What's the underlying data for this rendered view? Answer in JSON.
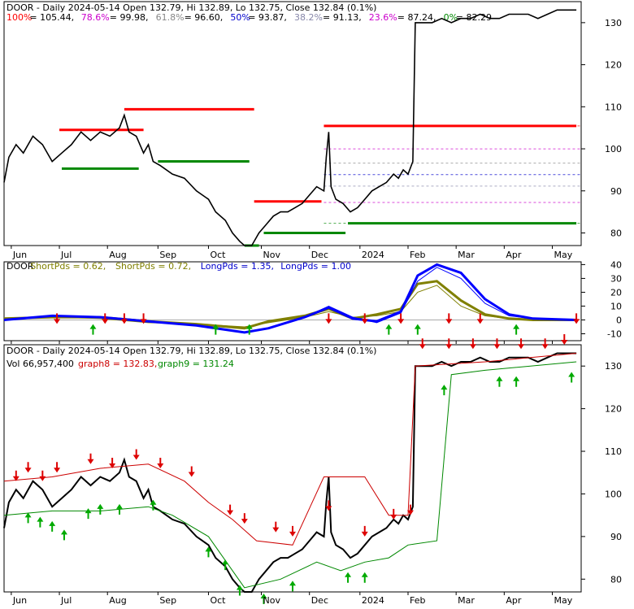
{
  "panel1": {
    "header": "DOOR - Daily 2024-05-14 Open 132.79, Hi 132.89, Lo 132.75, Close 132.84 (0.1%)",
    "fib_levels": [
      {
        "label": "100%",
        "value": "105.44",
        "color": "#ff0000"
      },
      {
        "label": "78.6%",
        "value": "99.98",
        "color": "#cc00cc"
      },
      {
        "label": "61.8%",
        "value": "96.60",
        "color": "#888888"
      },
      {
        "label": "50%",
        "value": "93.87",
        "color": "#0000cc"
      },
      {
        "label": "38.2%",
        "value": "91.13",
        "color": "#8888aa"
      },
      {
        "label": "23.6%",
        "value": "87.24",
        "color": "#cc00cc"
      },
      {
        "label": "0%",
        "value": "82.29",
        "color": "#008800"
      }
    ],
    "yticks": [
      "80",
      "90",
      "100",
      "110",
      "120",
      "130"
    ]
  },
  "panel2": {
    "labels": [
      {
        "text": "DOOR",
        "color": "#000000"
      },
      {
        "text": "ShortPds = 0.62,",
        "color": "#808000"
      },
      {
        "text": "ShortPds = 0.72,",
        "color": "#808000"
      },
      {
        "text": "LongPds = 1.35,",
        "color": "#0000cc"
      },
      {
        "text": "LongPds = 1.00",
        "color": "#0000cc"
      }
    ],
    "yticks": [
      "-10",
      "0",
      "10",
      "20",
      "30",
      "40"
    ]
  },
  "panel3": {
    "header": "DOOR - Daily 2024-05-14 Open 132.79, Hi 132.89, Lo 132.75, Close 132.84 (0.1%)",
    "vol_label": "Vol 66,957,400",
    "graph8_label": "graph8 = 132.83,",
    "graph9_label": "graph9 = 131.24",
    "yticks": [
      "80",
      "90",
      "100",
      "110",
      "120",
      "130"
    ]
  },
  "x_labels": [
    "Jun",
    "Jul",
    "Aug",
    "Sep",
    "Oct",
    "Nov",
    "Dec",
    "2024",
    "Feb",
    "Mar",
    "Apr",
    "May"
  ],
  "colors": {
    "background": "#ffffff",
    "price": "#000000",
    "fib_high": "#ff0000",
    "fib_low": "#008800",
    "short_pds": "#808000",
    "long_pds": "#0000ff",
    "graph8": "#cc0000",
    "graph9": "#008800",
    "arrow_down": "#dd0000",
    "arrow_up": "#00aa00"
  },
  "chart_data": [
    {
      "type": "line",
      "title": "DOOR - Daily 2024-05-14 Open 132.79, Hi 132.89, Lo 132.75, Close 132.84 (0.1%)",
      "x": [
        "Jun",
        "Jul",
        "Aug",
        "Sep",
        "Oct",
        "Nov",
        "Dec",
        "2024",
        "Feb",
        "Mar",
        "Apr",
        "May"
      ],
      "ylim": [
        77,
        135
      ],
      "grid": false,
      "series": [
        {
          "name": "",
          "points": [
            [
              0,
              92
            ],
            [
              2,
              98
            ],
            [
              5,
              101
            ],
            [
              8,
              99
            ],
            [
              12,
              103
            ],
            [
              16,
              101
            ],
            [
              20,
              97
            ],
            [
              24,
              99
            ],
            [
              28,
              101
            ],
            [
              32,
              104
            ],
            [
              36,
              102
            ],
            [
              40,
              104
            ],
            [
              44,
              103
            ],
            [
              48,
              105
            ],
            [
              50,
              108
            ],
            [
              52,
              104
            ],
            [
              55,
              103
            ],
            [
              58,
              99
            ],
            [
              60,
              101
            ],
            [
              62,
              97
            ],
            [
              65,
              96
            ],
            [
              70,
              94
            ],
            [
              75,
              93
            ],
            [
              80,
              90
            ],
            [
              85,
              88
            ],
            [
              88,
              85
            ],
            [
              92,
              83
            ],
            [
              95,
              80
            ],
            [
              98,
              78
            ],
            [
              100,
              77
            ],
            [
              103,
              77
            ],
            [
              106,
              80
            ],
            [
              109,
              82
            ],
            [
              112,
              84
            ],
            [
              115,
              85
            ],
            [
              118,
              85
            ],
            [
              121,
              86
            ],
            [
              124,
              87
            ],
            [
              127,
              89
            ],
            [
              130,
              91
            ],
            [
              133,
              90
            ],
            [
              134,
              98
            ],
            [
              135,
              104
            ],
            [
              136,
              91
            ],
            [
              138,
              88
            ],
            [
              141,
              87
            ],
            [
              144,
              85
            ],
            [
              147,
              86
            ],
            [
              150,
              88
            ],
            [
              153,
              90
            ],
            [
              156,
              91
            ],
            [
              159,
              92
            ],
            [
              162,
              94
            ],
            [
              164,
              93
            ],
            [
              166,
              95
            ],
            [
              168,
              94
            ],
            [
              170,
              97
            ],
            [
              171,
              130
            ],
            [
              174,
              130
            ],
            [
              178,
              130
            ],
            [
              182,
              131
            ],
            [
              186,
              130
            ],
            [
              190,
              131
            ],
            [
              194,
              131
            ],
            [
              198,
              132
            ],
            [
              202,
              131
            ],
            [
              206,
              131
            ],
            [
              210,
              132
            ],
            [
              214,
              132
            ],
            [
              218,
              132
            ],
            [
              222,
              131
            ],
            [
              226,
              132
            ],
            [
              230,
              133
            ],
            [
              234,
              133
            ],
            [
              238,
              133
            ]
          ]
        }
      ],
      "hlines": [
        {
          "value": 109.4,
          "x0": 50,
          "x1": 104,
          "color": "#ff0000"
        },
        {
          "value": 104.5,
          "x0": 23,
          "x1": 58,
          "color": "#ff0000"
        },
        {
          "value": 97.0,
          "x0": 64,
          "x1": 102,
          "color": "#008800"
        },
        {
          "value": 95.3,
          "x0": 24,
          "x1": 56,
          "color": "#008800"
        },
        {
          "value": 87.5,
          "x0": 104,
          "x1": 132,
          "color": "#ff0000"
        },
        {
          "value": 80.0,
          "x0": 108,
          "x1": 142,
          "color": "#008800"
        },
        {
          "value": 77.0,
          "x0": 100,
          "x1": 106,
          "color": "#008800"
        },
        {
          "value": 105.44,
          "x0": 133,
          "x1": 238,
          "color": "#ff0000"
        },
        {
          "value": 82.29,
          "x0": 143,
          "x1": 238,
          "color": "#008800"
        }
      ],
      "fib_lines": [
        105.44,
        99.98,
        96.6,
        93.87,
        91.13,
        87.24,
        82.29
      ]
    },
    {
      "type": "line",
      "x": [
        "Jun",
        "Jul",
        "Aug",
        "Sep",
        "Oct",
        "Nov",
        "Dec",
        "2024",
        "Feb",
        "Mar",
        "Apr",
        "May"
      ],
      "ylim": [
        -15,
        42
      ],
      "series": [
        {
          "name": "ShortPds",
          "points": [
            [
              0,
              1
            ],
            [
              20,
              2
            ],
            [
              40,
              1
            ],
            [
              60,
              -2
            ],
            [
              80,
              -3
            ],
            [
              100,
              -5
            ],
            [
              110,
              -2
            ],
            [
              125,
              2
            ],
            [
              135,
              6
            ],
            [
              145,
              2
            ],
            [
              155,
              3
            ],
            [
              165,
              6
            ],
            [
              172,
              20
            ],
            [
              180,
              25
            ],
            [
              190,
              10
            ],
            [
              200,
              3
            ],
            [
              210,
              1
            ],
            [
              220,
              0
            ],
            [
              238,
              0
            ]
          ]
        },
        {
          "name": "ShortPds",
          "points": [
            [
              0,
              1
            ],
            [
              20,
              2
            ],
            [
              40,
              2
            ],
            [
              60,
              -1
            ],
            [
              80,
              -3
            ],
            [
              100,
              -6
            ],
            [
              110,
              -1
            ],
            [
              125,
              3
            ],
            [
              135,
              8
            ],
            [
              145,
              1
            ],
            [
              155,
              4
            ],
            [
              165,
              8
            ],
            [
              172,
              26
            ],
            [
              180,
              28
            ],
            [
              190,
              14
            ],
            [
              200,
              4
            ],
            [
              210,
              1
            ],
            [
              220,
              0
            ],
            [
              238,
              0
            ]
          ]
        },
        {
          "name": "LongPds",
          "points": [
            [
              0,
              0
            ],
            [
              20,
              3
            ],
            [
              40,
              2
            ],
            [
              60,
              -1
            ],
            [
              80,
              -4
            ],
            [
              100,
              -9
            ],
            [
              110,
              -6
            ],
            [
              125,
              2
            ],
            [
              135,
              10
            ],
            [
              145,
              2
            ],
            [
              155,
              -2
            ],
            [
              165,
              5
            ],
            [
              172,
              28
            ],
            [
              180,
              38
            ],
            [
              190,
              30
            ],
            [
              200,
              12
            ],
            [
              210,
              3
            ],
            [
              220,
              1
            ],
            [
              238,
              0
            ]
          ]
        },
        {
          "name": "LongPds",
          "points": [
            [
              0,
              0
            ],
            [
              20,
              3
            ],
            [
              40,
              2
            ],
            [
              60,
              -1
            ],
            [
              80,
              -4
            ],
            [
              100,
              -9
            ],
            [
              110,
              -6
            ],
            [
              125,
              2
            ],
            [
              135,
              9
            ],
            [
              145,
              1
            ],
            [
              155,
              -1
            ],
            [
              165,
              6
            ],
            [
              172,
              32
            ],
            [
              180,
              40
            ],
            [
              190,
              34
            ],
            [
              200,
              15
            ],
            [
              210,
              4
            ],
            [
              220,
              1
            ],
            [
              238,
              0
            ]
          ]
        }
      ]
    },
    {
      "type": "line",
      "title": "DOOR - Daily 2024-05-14 Open 132.79, Hi 132.89, Lo 132.75, Close 132.84 (0.1%)",
      "x": [
        "Jun",
        "Jul",
        "Aug",
        "Sep",
        "Oct",
        "Nov",
        "Dec",
        "2024",
        "Feb",
        "Mar",
        "Apr",
        "May"
      ],
      "ylim": [
        77,
        135
      ],
      "series": [
        {
          "name": "graph8",
          "points": [
            [
              0,
              103
            ],
            [
              20,
              104
            ],
            [
              40,
              106
            ],
            [
              60,
              107
            ],
            [
              75,
              103
            ],
            [
              85,
              98
            ],
            [
              95,
              94
            ],
            [
              105,
              89
            ],
            [
              120,
              88
            ],
            [
              133,
              104
            ],
            [
              150,
              104
            ],
            [
              160,
              95
            ],
            [
              168,
              95
            ],
            [
              171,
              130
            ],
            [
              200,
              131
            ],
            [
              238,
              133
            ]
          ]
        },
        {
          "name": "graph9",
          "points": [
            [
              0,
              95
            ],
            [
              20,
              96
            ],
            [
              40,
              96
            ],
            [
              60,
              97
            ],
            [
              70,
              95
            ],
            [
              85,
              90
            ],
            [
              100,
              78
            ],
            [
              115,
              80
            ],
            [
              130,
              84
            ],
            [
              140,
              82
            ],
            [
              150,
              84
            ],
            [
              160,
              85
            ],
            [
              168,
              88
            ],
            [
              180,
              89
            ],
            [
              186,
              128
            ],
            [
              200,
              129
            ],
            [
              238,
              131
            ]
          ]
        }
      ]
    }
  ]
}
